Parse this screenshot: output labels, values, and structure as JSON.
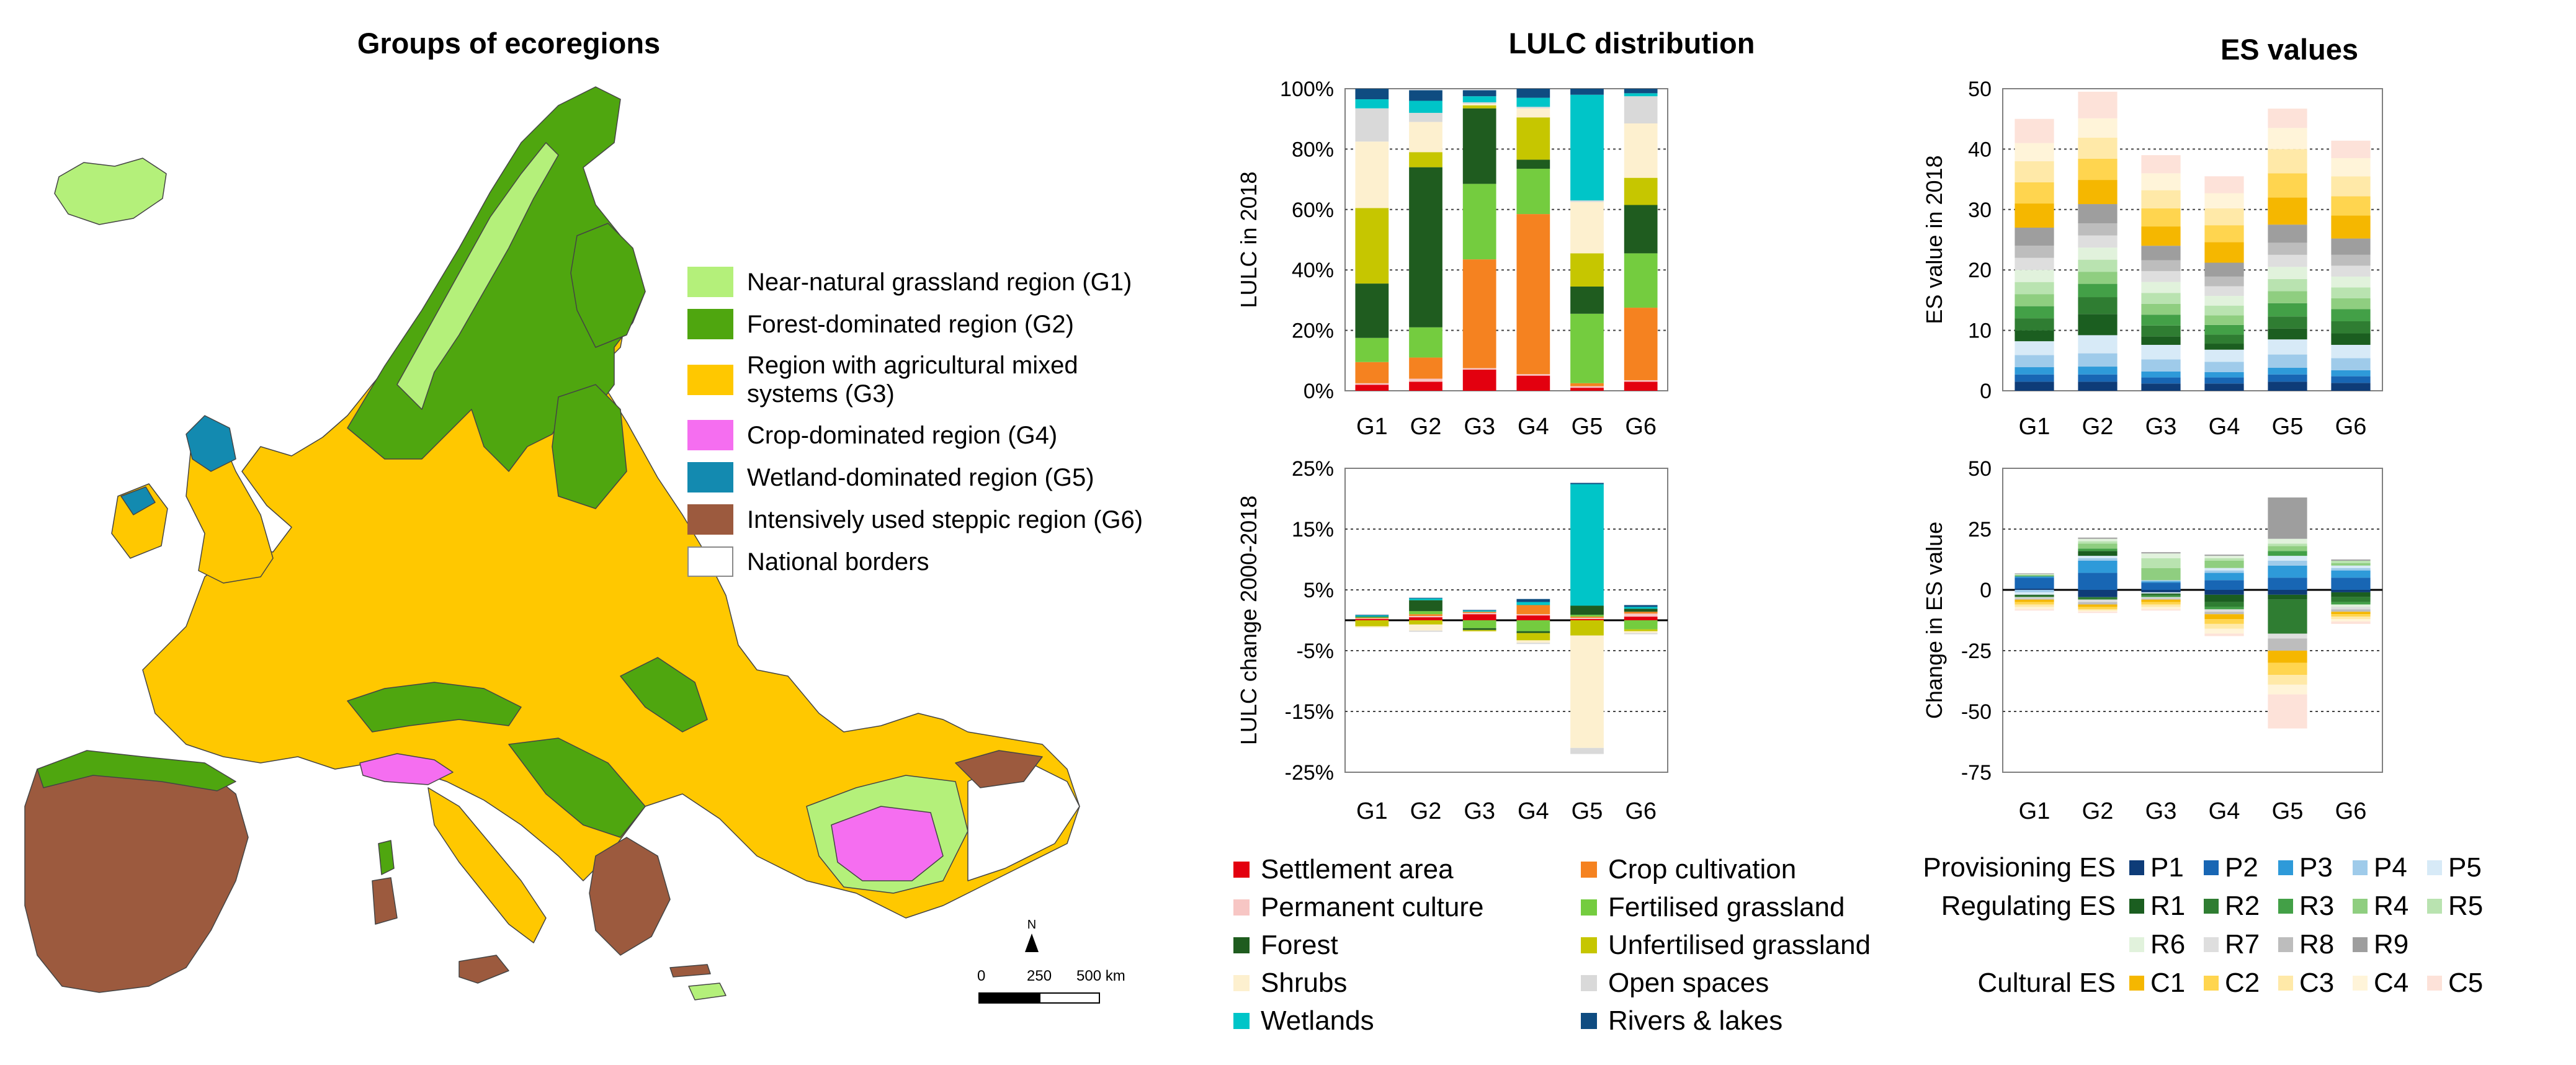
{
  "map": {
    "title": "Groups of ecoregions",
    "legend": [
      {
        "label": "Near-natural grassland region (G1)",
        "color": "#b4f07a"
      },
      {
        "label": "Forest-dominated region (G2)",
        "color": "#4fa60f"
      },
      {
        "label": "Region with agricultural mixed systems (G3)",
        "color": "#ffc800"
      },
      {
        "label": "Crop-dominated region (G4)",
        "color": "#f56ef0"
      },
      {
        "label": "Wetland-dominated region (G5)",
        "color": "#138ab0"
      },
      {
        "label": "Intensively used steppic region (G6)",
        "color": "#9c5a3e"
      },
      {
        "label": "National borders",
        "color": "#ffffff"
      }
    ],
    "scalebar": {
      "labels": [
        "0",
        "250",
        "500 km"
      ],
      "north": "N"
    }
  },
  "titles": {
    "lulc": "LULC distribution",
    "es": "ES values"
  },
  "chart_data": [
    {
      "type": "bar",
      "stacked": true,
      "id": "lulc_distribution",
      "title": "LULC distribution",
      "ylabel": "LULC in 2018",
      "categories": [
        "G1",
        "G2",
        "G3",
        "G4",
        "G5",
        "G6"
      ],
      "ylim": [
        0,
        100
      ],
      "yticks": [
        0,
        20,
        40,
        60,
        80,
        100
      ],
      "ytick_labels": [
        "0%",
        "20%",
        "40%",
        "60%",
        "80%",
        "100%"
      ],
      "series": [
        {
          "name": "Settlement area",
          "color": "#e3000f",
          "values": [
            2,
            3,
            7,
            5,
            1,
            3
          ]
        },
        {
          "name": "Permanent culture",
          "color": "#f7c6c4",
          "values": [
            0.5,
            1,
            0.5,
            0.5,
            0.5,
            0.5
          ]
        },
        {
          "name": "Crop cultivation",
          "color": "#f58220",
          "values": [
            7,
            7,
            36,
            53,
            1,
            24
          ]
        },
        {
          "name": "Fertilised grassland",
          "color": "#74cc3f",
          "values": [
            8,
            10,
            25,
            15,
            23,
            18
          ]
        },
        {
          "name": "Forest",
          "color": "#1f5c1f",
          "values": [
            18,
            53,
            25,
            3,
            9,
            16
          ]
        },
        {
          "name": "Unfertilised grassland",
          "color": "#c6c600",
          "values": [
            25,
            5,
            1,
            14,
            11,
            9
          ]
        },
        {
          "name": "Shrubs",
          "color": "#fdf0cf",
          "values": [
            22,
            10,
            0.5,
            3,
            17,
            18
          ]
        },
        {
          "name": "Open spaces",
          "color": "#d9d9d9",
          "values": [
            11,
            3,
            0.5,
            0.5,
            0.5,
            9
          ]
        },
        {
          "name": "Wetlands",
          "color": "#00c5c8",
          "values": [
            3,
            4,
            2,
            3,
            35,
            1
          ]
        },
        {
          "name": "Rivers & lakes",
          "color": "#0f4c81",
          "values": [
            3.5,
            3.5,
            2,
            3,
            2,
            1.5
          ]
        }
      ]
    },
    {
      "type": "bar",
      "stacked": true,
      "id": "lulc_change",
      "title": "",
      "ylabel": "LULC change 2000-2018",
      "categories": [
        "G1",
        "G2",
        "G3",
        "G4",
        "G5",
        "G6"
      ],
      "ylim": [
        -25,
        25
      ],
      "yticks": [
        25,
        15,
        5,
        -5,
        -15,
        -25
      ],
      "ytick_labels": [
        "25%",
        "15%",
        "5%",
        "-5%",
        "-15%",
        "-25%"
      ],
      "series": [
        {
          "name": "Settlement area",
          "color": "#e3000f",
          "values": [
            0.2,
            0.5,
            1.0,
            0.8,
            0.2,
            0.6
          ]
        },
        {
          "name": "Permanent culture",
          "color": "#f7c6c4",
          "values": [
            0.1,
            0.2,
            0.2,
            0.2,
            0.2,
            0.5
          ]
        },
        {
          "name": "Crop cultivation",
          "color": "#f58220",
          "values": [
            0.1,
            0.3,
            0.2,
            1.5,
            0.2,
            0.3
          ]
        },
        {
          "name": "Fertilised grassland",
          "color": "#74cc3f",
          "values": [
            0.1,
            0.5,
            -1.3,
            -1.8,
            0.3,
            -1.5
          ]
        },
        {
          "name": "Forest",
          "color": "#1f5c1f",
          "values": [
            0.1,
            1.8,
            -0.3,
            -0.3,
            1.5,
            0.5
          ]
        },
        {
          "name": "Unfertilised grassland",
          "color": "#c6c600",
          "values": [
            -1.0,
            -0.7,
            -0.2,
            -1.2,
            -2.5,
            -0.3
          ]
        },
        {
          "name": "Shrubs",
          "color": "#fdf0cf",
          "values": [
            -0.2,
            -1.0,
            -0.1,
            -0.4,
            -18.5,
            -0.3
          ]
        },
        {
          "name": "Open spaces",
          "color": "#d9d9d9",
          "values": [
            0,
            -0.2,
            0,
            -0.2,
            -1.0,
            -0.2
          ]
        },
        {
          "name": "Wetlands",
          "color": "#00c5c8",
          "values": [
            0.2,
            0.3,
            0.2,
            0.5,
            20,
            0.3
          ]
        },
        {
          "name": "Rivers & lakes",
          "color": "#0f4c81",
          "values": [
            0.1,
            0.1,
            0.1,
            0.5,
            0.2,
            0.3
          ]
        }
      ]
    },
    {
      "type": "bar",
      "stacked": true,
      "id": "es_values",
      "title": "ES values",
      "ylabel": "ES value in 2018",
      "categories": [
        "G1",
        "G2",
        "G3",
        "G4",
        "G5",
        "G6"
      ],
      "ylim": [
        0,
        50
      ],
      "yticks": [
        0,
        10,
        20,
        30,
        40,
        50
      ],
      "ytick_labels": [
        "0",
        "10",
        "20",
        "30",
        "40",
        "50"
      ],
      "series": [
        {
          "name": "P1",
          "color": "#0e3c78",
          "values": [
            1.5,
            1.5,
            1.2,
            1.2,
            1.5,
            1.3
          ]
        },
        {
          "name": "P2",
          "color": "#1866b4",
          "values": [
            1.2,
            1.2,
            1.0,
            1.0,
            1.2,
            1.1
          ]
        },
        {
          "name": "P3",
          "color": "#2e9ad9",
          "values": [
            1.2,
            1.3,
            1.0,
            0.9,
            1.1,
            1.0
          ]
        },
        {
          "name": "P4",
          "color": "#9fcbea",
          "values": [
            2.0,
            2.2,
            2.0,
            1.7,
            2.2,
            2.0
          ]
        },
        {
          "name": "P5",
          "color": "#d7eaf7",
          "values": [
            2.3,
            3.0,
            2.4,
            2.0,
            2.5,
            2.2
          ]
        },
        {
          "name": "R1",
          "color": "#1b5e20",
          "values": [
            1.8,
            3.5,
            1.4,
            1.0,
            1.8,
            1.9
          ]
        },
        {
          "name": "R2",
          "color": "#2f7d32",
          "values": [
            2.0,
            2.8,
            1.8,
            1.5,
            2.0,
            2.0
          ]
        },
        {
          "name": "R3",
          "color": "#43a047",
          "values": [
            2.0,
            2.2,
            1.8,
            1.6,
            2.2,
            2.0
          ]
        },
        {
          "name": "R4",
          "color": "#8fce80",
          "values": [
            2.0,
            2.0,
            1.8,
            1.6,
            2.0,
            1.8
          ]
        },
        {
          "name": "R5",
          "color": "#b9e3b0",
          "values": [
            2.0,
            2.0,
            1.8,
            1.6,
            2.0,
            1.8
          ]
        },
        {
          "name": "R6",
          "color": "#e1f2dc",
          "values": [
            2.0,
            2.0,
            1.8,
            1.6,
            2.0,
            1.8
          ]
        },
        {
          "name": "R7",
          "color": "#dedede",
          "values": [
            2.0,
            2.0,
            1.8,
            1.6,
            2.0,
            1.8
          ]
        },
        {
          "name": "R8",
          "color": "#bdbdbd",
          "values": [
            2.0,
            2.0,
            1.8,
            1.6,
            2.0,
            1.8
          ]
        },
        {
          "name": "R9",
          "color": "#9e9e9e",
          "values": [
            3.0,
            3.2,
            2.4,
            2.3,
            3.0,
            2.7
          ]
        },
        {
          "name": "C1",
          "color": "#f5b700",
          "values": [
            4.0,
            4.0,
            3.2,
            3.4,
            4.5,
            3.8
          ]
        },
        {
          "name": "C2",
          "color": "#ffd54f",
          "values": [
            3.5,
            3.5,
            3.0,
            2.8,
            4.0,
            3.2
          ]
        },
        {
          "name": "C3",
          "color": "#ffe9a8",
          "values": [
            3.5,
            3.5,
            3.0,
            2.8,
            4.0,
            3.3
          ]
        },
        {
          "name": "C4",
          "color": "#fff4d9",
          "values": [
            3.0,
            3.2,
            2.8,
            2.5,
            3.5,
            3.0
          ]
        },
        {
          "name": "C5",
          "color": "#fde2d9",
          "values": [
            4.0,
            4.4,
            3.0,
            2.8,
            3.2,
            2.9
          ]
        }
      ]
    },
    {
      "type": "bar",
      "stacked": true,
      "id": "es_change",
      "title": "",
      "ylabel": "Change in ES value",
      "categories": [
        "G1",
        "G2",
        "G3",
        "G4",
        "G5",
        "G6"
      ],
      "ylim": [
        -75,
        50
      ],
      "yticks": [
        50,
        25,
        0,
        -25,
        -50,
        -75
      ],
      "ytick_labels": [
        "50",
        "25",
        "0",
        "-25",
        "-50",
        "-75"
      ],
      "series": [
        {
          "name": "P1",
          "color": "#0e3c78",
          "values": [
            0.5,
            -3,
            -1,
            -2,
            -2,
            -1
          ]
        },
        {
          "name": "P2",
          "color": "#1866b4",
          "values": [
            4.5,
            7,
            3,
            4,
            5,
            5
          ]
        },
        {
          "name": "P3",
          "color": "#2e9ad9",
          "values": [
            0.5,
            5,
            0.5,
            3,
            5,
            3
          ]
        },
        {
          "name": "P4",
          "color": "#9fcbea",
          "values": [
            -1,
            1,
            0.5,
            1,
            2,
            1
          ]
        },
        {
          "name": "P5",
          "color": "#d7eaf7",
          "values": [
            -1,
            1,
            -0.5,
            1,
            2,
            1
          ]
        },
        {
          "name": "R1",
          "color": "#1b5e20",
          "values": [
            -0.5,
            2,
            -0.5,
            -3,
            -2,
            -2
          ]
        },
        {
          "name": "R2",
          "color": "#2f7d32",
          "values": [
            -0.5,
            -1,
            -0.5,
            -2,
            -14,
            -2
          ]
        },
        {
          "name": "R3",
          "color": "#43a047",
          "values": [
            0.3,
            1,
            -0.5,
            -1,
            2,
            -1
          ]
        },
        {
          "name": "R4",
          "color": "#8fce80",
          "values": [
            0.3,
            2,
            5,
            3,
            2,
            1
          ]
        },
        {
          "name": "R5",
          "color": "#b9e3b0",
          "values": [
            0.2,
            1,
            4,
            1,
            1,
            1
          ]
        },
        {
          "name": "R6",
          "color": "#e1f2dc",
          "values": [
            0.2,
            1,
            2,
            1,
            2,
            -1
          ]
        },
        {
          "name": "R7",
          "color": "#dedede",
          "values": [
            -0.5,
            -1,
            -0.5,
            -1,
            -2,
            -1
          ]
        },
        {
          "name": "R8",
          "color": "#bdbdbd",
          "values": [
            -0.5,
            -1,
            -0.5,
            -1,
            -5,
            -1
          ]
        },
        {
          "name": "R9",
          "color": "#9e9e9e",
          "values": [
            0.3,
            0.5,
            0.5,
            0.5,
            17,
            0.5
          ]
        },
        {
          "name": "C1",
          "color": "#f5b700",
          "values": [
            -1,
            -1,
            -1,
            -2,
            -5,
            -1
          ]
        },
        {
          "name": "C2",
          "color": "#ffd54f",
          "values": [
            -1,
            -1,
            -1,
            -2,
            -5,
            -1
          ]
        },
        {
          "name": "C3",
          "color": "#ffe9a8",
          "values": [
            -1,
            -0.5,
            -1,
            -2,
            -4,
            -1
          ]
        },
        {
          "name": "C4",
          "color": "#fff4d9",
          "values": [
            -1,
            -0.5,
            -1,
            -2,
            -4,
            -1
          ]
        },
        {
          "name": "C5",
          "color": "#fde2d9",
          "values": [
            -0.5,
            -0.5,
            -0.5,
            -1,
            -14,
            -1
          ]
        }
      ]
    }
  ],
  "lulc_legend": [
    {
      "label": "Settlement area",
      "color": "#e3000f"
    },
    {
      "label": "Crop cultivation",
      "color": "#f58220"
    },
    {
      "label": "Permanent culture",
      "color": "#f7c6c4"
    },
    {
      "label": "Fertilised grassland",
      "color": "#74cc3f"
    },
    {
      "label": "Forest",
      "color": "#1f5c1f"
    },
    {
      "label": "Unfertilised grassland",
      "color": "#c6c600"
    },
    {
      "label": "Shrubs",
      "color": "#fdf0cf"
    },
    {
      "label": "Open spaces",
      "color": "#d9d9d9"
    },
    {
      "label": "Wetlands",
      "color": "#00c5c8"
    },
    {
      "label": "Rivers & lakes",
      "color": "#0f4c81"
    }
  ],
  "es_legend": {
    "groups": [
      {
        "name": "Provisioning ES",
        "rows": [
          [
            {
              "label": "P1",
              "color": "#0e3c78"
            },
            {
              "label": "P2",
              "color": "#1866b4"
            },
            {
              "label": "P3",
              "color": "#2e9ad9"
            },
            {
              "label": "P4",
              "color": "#9fcbea"
            },
            {
              "label": "P5",
              "color": "#d7eaf7"
            }
          ]
        ]
      },
      {
        "name": "Regulating ES",
        "rows": [
          [
            {
              "label": "R1",
              "color": "#1b5e20"
            },
            {
              "label": "R2",
              "color": "#2f7d32"
            },
            {
              "label": "R3",
              "color": "#43a047"
            },
            {
              "label": "R4",
              "color": "#8fce80"
            },
            {
              "label": "R5",
              "color": "#b9e3b0"
            }
          ],
          [
            {
              "label": "R6",
              "color": "#e1f2dc"
            },
            {
              "label": "R7",
              "color": "#dedede"
            },
            {
              "label": "R8",
              "color": "#bdbdbd"
            },
            {
              "label": "R9",
              "color": "#9e9e9e"
            }
          ]
        ]
      },
      {
        "name": "Cultural ES",
        "rows": [
          [
            {
              "label": "C1",
              "color": "#f5b700"
            },
            {
              "label": "C2",
              "color": "#ffd54f"
            },
            {
              "label": "C3",
              "color": "#ffe9a8"
            },
            {
              "label": "C4",
              "color": "#fff4d9"
            },
            {
              "label": "C5",
              "color": "#fde2d9"
            }
          ]
        ]
      }
    ]
  }
}
